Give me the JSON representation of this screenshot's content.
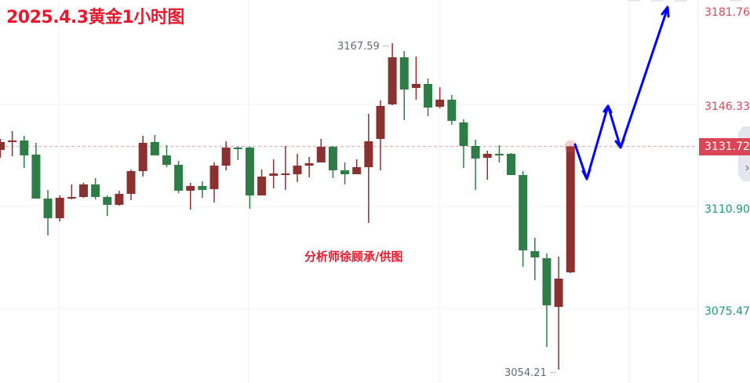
{
  "header": {
    "title": "2025.4.3黄金1小时图"
  },
  "watermark": "分析师徐顾承/供图",
  "colors": {
    "up": "#8b3230",
    "down": "#2e7d47",
    "current_price_bg": "#d94756",
    "axis_upper": "#d94756",
    "axis_lower": "#1a9a73",
    "annotation": "#0000ff",
    "grid": "#f0f1f4"
  },
  "chart_data": {
    "type": "candlestick",
    "title": "2025.4.3黄金1小时图",
    "convention": "red = up, green = down",
    "ylim": [
      3052.9,
      3184.1
    ],
    "y_ticks": [
      "3181.76",
      "3146.33",
      "3110.90",
      "3075.47"
    ],
    "current_price": "3131.72",
    "high_label": "3167.59",
    "low_label": "3054.21",
    "grid": true,
    "candles": [
      [
        3130.52,
        3134.34,
        3127.8,
        3133.25
      ],
      [
        3133.25,
        3137.06,
        3128.34,
        3133.79
      ],
      [
        3133.79,
        3135.43,
        3124.25,
        3128.62
      ],
      [
        3128.89,
        3132.98,
        3113.62,
        3113.62
      ],
      [
        3113.62,
        3116.62,
        3100.81,
        3106.81
      ],
      [
        3106.81,
        3114.72,
        3105.72,
        3113.9
      ],
      [
        3113.62,
        3118.53,
        3113.35,
        3114.17
      ],
      [
        3114.17,
        3119.08,
        3113.9,
        3118.53
      ],
      [
        3118.53,
        3120.71,
        3113.35,
        3114.17
      ],
      [
        3114.17,
        3114.72,
        3107.63,
        3111.44
      ],
      [
        3111.44,
        3116.35,
        3111.17,
        3115.26
      ],
      [
        3115.26,
        3123.71,
        3113.08,
        3123.16
      ],
      [
        3123.16,
        3135.43,
        3121.26,
        3132.98
      ],
      [
        3133.25,
        3135.7,
        3128.62,
        3128.62
      ],
      [
        3128.62,
        3132.16,
        3124.53,
        3125.34
      ],
      [
        3125.34,
        3126.71,
        3115.53,
        3116.35
      ],
      [
        3116.35,
        3119.08,
        3109.81,
        3117.99
      ],
      [
        3117.99,
        3119.62,
        3113.9,
        3116.62
      ],
      [
        3116.9,
        3126.16,
        3112.26,
        3125.07
      ],
      [
        3125.07,
        3133.52,
        3123.44,
        3131.34
      ],
      [
        3131.34,
        3131.61,
        3126.98,
        3130.8
      ],
      [
        3131.34,
        3131.61,
        3110.08,
        3114.72
      ],
      [
        3114.72,
        3123.71,
        3114.72,
        3121.26
      ],
      [
        3121.53,
        3127.25,
        3117.17,
        3122.35
      ],
      [
        3121.8,
        3131.89,
        3116.62,
        3122.35
      ],
      [
        3122.07,
        3129.16,
        3119.35,
        3125.07
      ],
      [
        3125.07,
        3128.07,
        3120.98,
        3125.89
      ],
      [
        3126.16,
        3134.34,
        3126.16,
        3131.61
      ],
      [
        3131.61,
        3131.89,
        3120.71,
        3123.44
      ],
      [
        3123.44,
        3126.16,
        3118.53,
        3122.07
      ],
      [
        3122.07,
        3127.25,
        3122.07,
        3124.53
      ],
      [
        3124.53,
        3143.06,
        3105.18,
        3133.52
      ],
      [
        3134.34,
        3147.69,
        3123.44,
        3145.79
      ],
      [
        3146.33,
        3167.59,
        3146.06,
        3162.68
      ],
      [
        3162.68,
        3164.86,
        3140.88,
        3151.51
      ],
      [
        3152.05,
        3162.96,
        3147.97,
        3153.42
      ],
      [
        3153.42,
        3155.32,
        3142.24,
        3145.24
      ],
      [
        3145.51,
        3152.33,
        3144.97,
        3147.97
      ],
      [
        3147.97,
        3149.6,
        3139.24,
        3140.61
      ],
      [
        3140.06,
        3141.15,
        3124.25,
        3131.89
      ],
      [
        3131.89,
        3134.07,
        3116.62,
        3127.52
      ],
      [
        3127.8,
        3130.25,
        3120.17,
        3129.16
      ],
      [
        3129.16,
        3132.16,
        3126.16,
        3128.89
      ],
      [
        3129.16,
        3129.43,
        3121.8,
        3121.8
      ],
      [
        3121.8,
        3123.16,
        3089.91,
        3095.64
      ],
      [
        3095.36,
        3100.0,
        3085.28,
        3093.18
      ],
      [
        3092.91,
        3094.55,
        3062.11,
        3076.56
      ],
      [
        3076.01,
        3093.46,
        3054.21,
        3085.82
      ],
      [
        3088.0,
        3132.0,
        3087.7,
        3131.72
      ]
    ],
    "candle_fields": [
      "open",
      "high",
      "low",
      "close"
    ]
  },
  "icons": {
    "side_tab": "chevron-right-icon"
  }
}
